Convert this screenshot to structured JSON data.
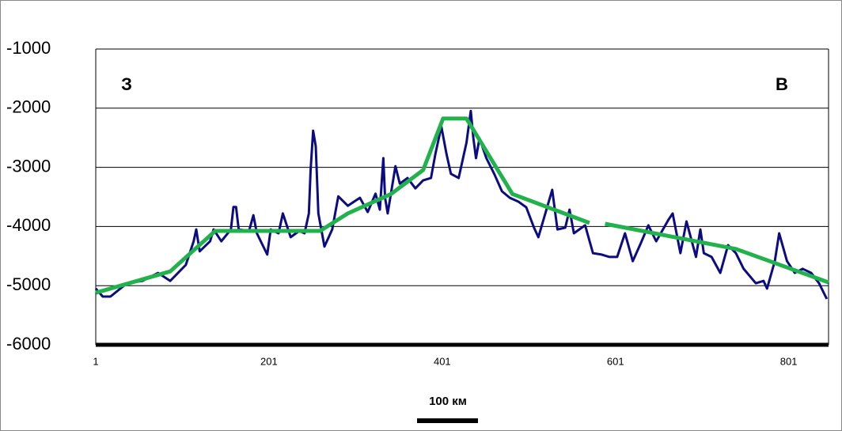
{
  "chart_data": {
    "type": "line",
    "annotations": [
      "З",
      "В"
    ],
    "scale_label": "100 км",
    "xlim": [
      1,
      847
    ],
    "xticks": [
      1,
      201,
      401,
      601,
      801
    ],
    "ylim": [
      -6000,
      -1000
    ],
    "yticks": [
      -6000,
      -5000,
      -4000,
      -3000,
      -2000,
      -1000
    ],
    "grid": true,
    "series": [
      {
        "color": "#0c0c82",
        "x": [
          1,
          9,
          18,
          37,
          55,
          73,
          87,
          105,
          114,
          117,
          121,
          133,
          137,
          146,
          157,
          160,
          163,
          166,
          178,
          183,
          187,
          199,
          203,
          212,
          217,
          226,
          236,
          242,
          247,
          249,
          252,
          255,
          258,
          265,
          274,
          281,
          292,
          306,
          315,
          324,
          329,
          333,
          335,
          338,
          347,
          352,
          361,
          370,
          379,
          388,
          393,
          400,
          406,
          411,
          420,
          429,
          434,
          437,
          440,
          444,
          452,
          461,
          470,
          479,
          489,
          498,
          507,
          512,
          520,
          528,
          534,
          543,
          548,
          553,
          566,
          575,
          585,
          594,
          603,
          612,
          621,
          630,
          639,
          648,
          662,
          667,
          676,
          683,
          694,
          699,
          703,
          712,
          722,
          731,
          740,
          749,
          763,
          772,
          776,
          785,
          790,
          799,
          808,
          817,
          827,
          836,
          845
        ],
        "values": [
          -5050,
          -5185,
          -5185,
          -4960,
          -4920,
          -4785,
          -4920,
          -4650,
          -4250,
          -4050,
          -4420,
          -4250,
          -4050,
          -4250,
          -4050,
          -3670,
          -3670,
          -4050,
          -4075,
          -3810,
          -4115,
          -4475,
          -4050,
          -4115,
          -3780,
          -4180,
          -4075,
          -4115,
          -3780,
          -3045,
          -2380,
          -2645,
          -3780,
          -4340,
          -4050,
          -3490,
          -3650,
          -3515,
          -3755,
          -3445,
          -3715,
          -2845,
          -3515,
          -3780,
          -2980,
          -3275,
          -3180,
          -3355,
          -3220,
          -3180,
          -2780,
          -2310,
          -2780,
          -3110,
          -3180,
          -2580,
          -2045,
          -2510,
          -2845,
          -2510,
          -2845,
          -3110,
          -3405,
          -3515,
          -3580,
          -3675,
          -4020,
          -4180,
          -3780,
          -3380,
          -4050,
          -4020,
          -3715,
          -4115,
          -3980,
          -4450,
          -4475,
          -4515,
          -4515,
          -4115,
          -4585,
          -4290,
          -3980,
          -4250,
          -3890,
          -3780,
          -4450,
          -3915,
          -4515,
          -4050,
          -4450,
          -4515,
          -4785,
          -4315,
          -4450,
          -4715,
          -4960,
          -4920,
          -5050,
          -4585,
          -4115,
          -4585,
          -4785,
          -4715,
          -4785,
          -4960,
          -5225
        ]
      },
      {
        "color": "#22b24c",
        "x": [
          1,
          87,
          139,
          260,
          292,
          342,
          379,
          402,
          429,
          482,
          571,
          580,
          589,
          740,
          847
        ],
        "values": [
          -5120,
          -4760,
          -4075,
          -4075,
          -3780,
          -3450,
          -3045,
          -2175,
          -2175,
          -3450,
          -3940,
          null,
          -3955,
          -4380,
          -4945
        ]
      }
    ]
  }
}
